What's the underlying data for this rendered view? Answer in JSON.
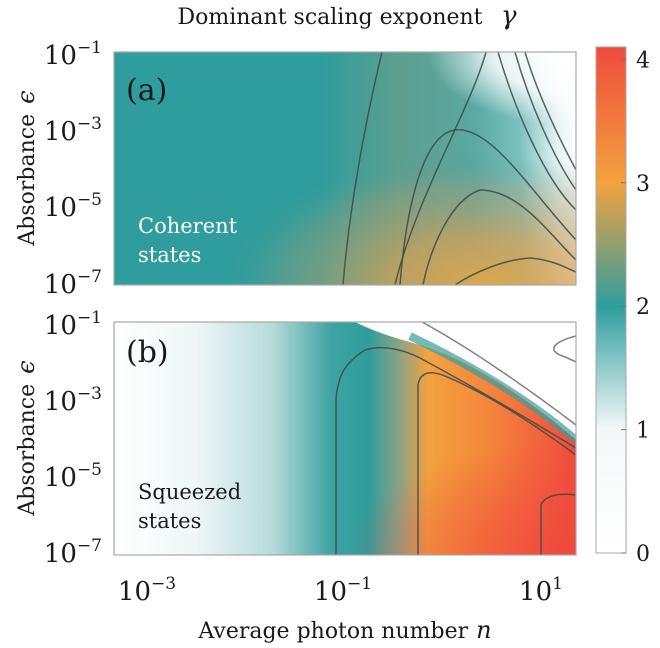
{
  "chart_data": {
    "type": "heatmap",
    "title": "Dominant scaling exponent",
    "title_symbol": "γ",
    "xlabel": "Average photon number",
    "xlabel_symbol": "n",
    "x_scale": "log",
    "xlim": [
      0.001,
      20
    ],
    "x_ticks": [
      {
        "value": 0.001,
        "base": "10",
        "exp": "−3"
      },
      {
        "value": 0.1,
        "base": "10",
        "exp": "−1"
      },
      {
        "value": 10,
        "base": "10",
        "exp": "1"
      }
    ],
    "y_scale": "log",
    "colorbar": {
      "range": [
        0,
        4.1
      ],
      "ticks": [
        "0",
        "1",
        "2",
        "3",
        "4"
      ],
      "colors": [
        "#ffffff",
        "#ffffff",
        "#2f9d9d",
        "#f3a23e",
        "#f04a3d"
      ],
      "color_positions": [
        0,
        1,
        2,
        3,
        4.1
      ]
    },
    "panels": [
      {
        "label": "(a)",
        "ylabel": "Absorbance",
        "ylabel_symbol": "ϵ",
        "ylim": [
          1e-07,
          0.1
        ],
        "y_ticks": [
          {
            "value": 0.1,
            "base": "10",
            "exp": "−1"
          },
          {
            "value": 0.001,
            "base": "10",
            "exp": "−3"
          },
          {
            "value": 1e-05,
            "base": "10",
            "exp": "−5"
          },
          {
            "value": 1e-07,
            "base": "10",
            "exp": "−7"
          }
        ],
        "annotation": [
          "Coherent",
          "states"
        ],
        "description": "γ ≈ 2 for n ≲ 1; rises toward ≈ 2.8 for n ≈ 1–20 at small ϵ; drops toward 1 at large n and large ϵ"
      },
      {
        "label": "(b)",
        "ylabel": "Absorbance",
        "ylabel_symbol": "ϵ",
        "ylim": [
          1e-07,
          0.1
        ],
        "y_ticks": [
          {
            "value": 0.1,
            "base": "10",
            "exp": "−1"
          },
          {
            "value": 0.001,
            "base": "10",
            "exp": "−3"
          },
          {
            "value": 1e-05,
            "base": "10",
            "exp": "−5"
          },
          {
            "value": 1e-07,
            "base": "10",
            "exp": "−7"
          }
        ],
        "annotation": [
          "Squeezed",
          "states"
        ],
        "description": "γ ≈ 1 for n ≲ 0.01; ≈ 2 near n ≈ 0.1–0.4; rises to ≈ 3–4 for n ≳ 0.5 at small ϵ; ≈ 1 above a diagonal boundary at large n and ϵ"
      }
    ]
  }
}
